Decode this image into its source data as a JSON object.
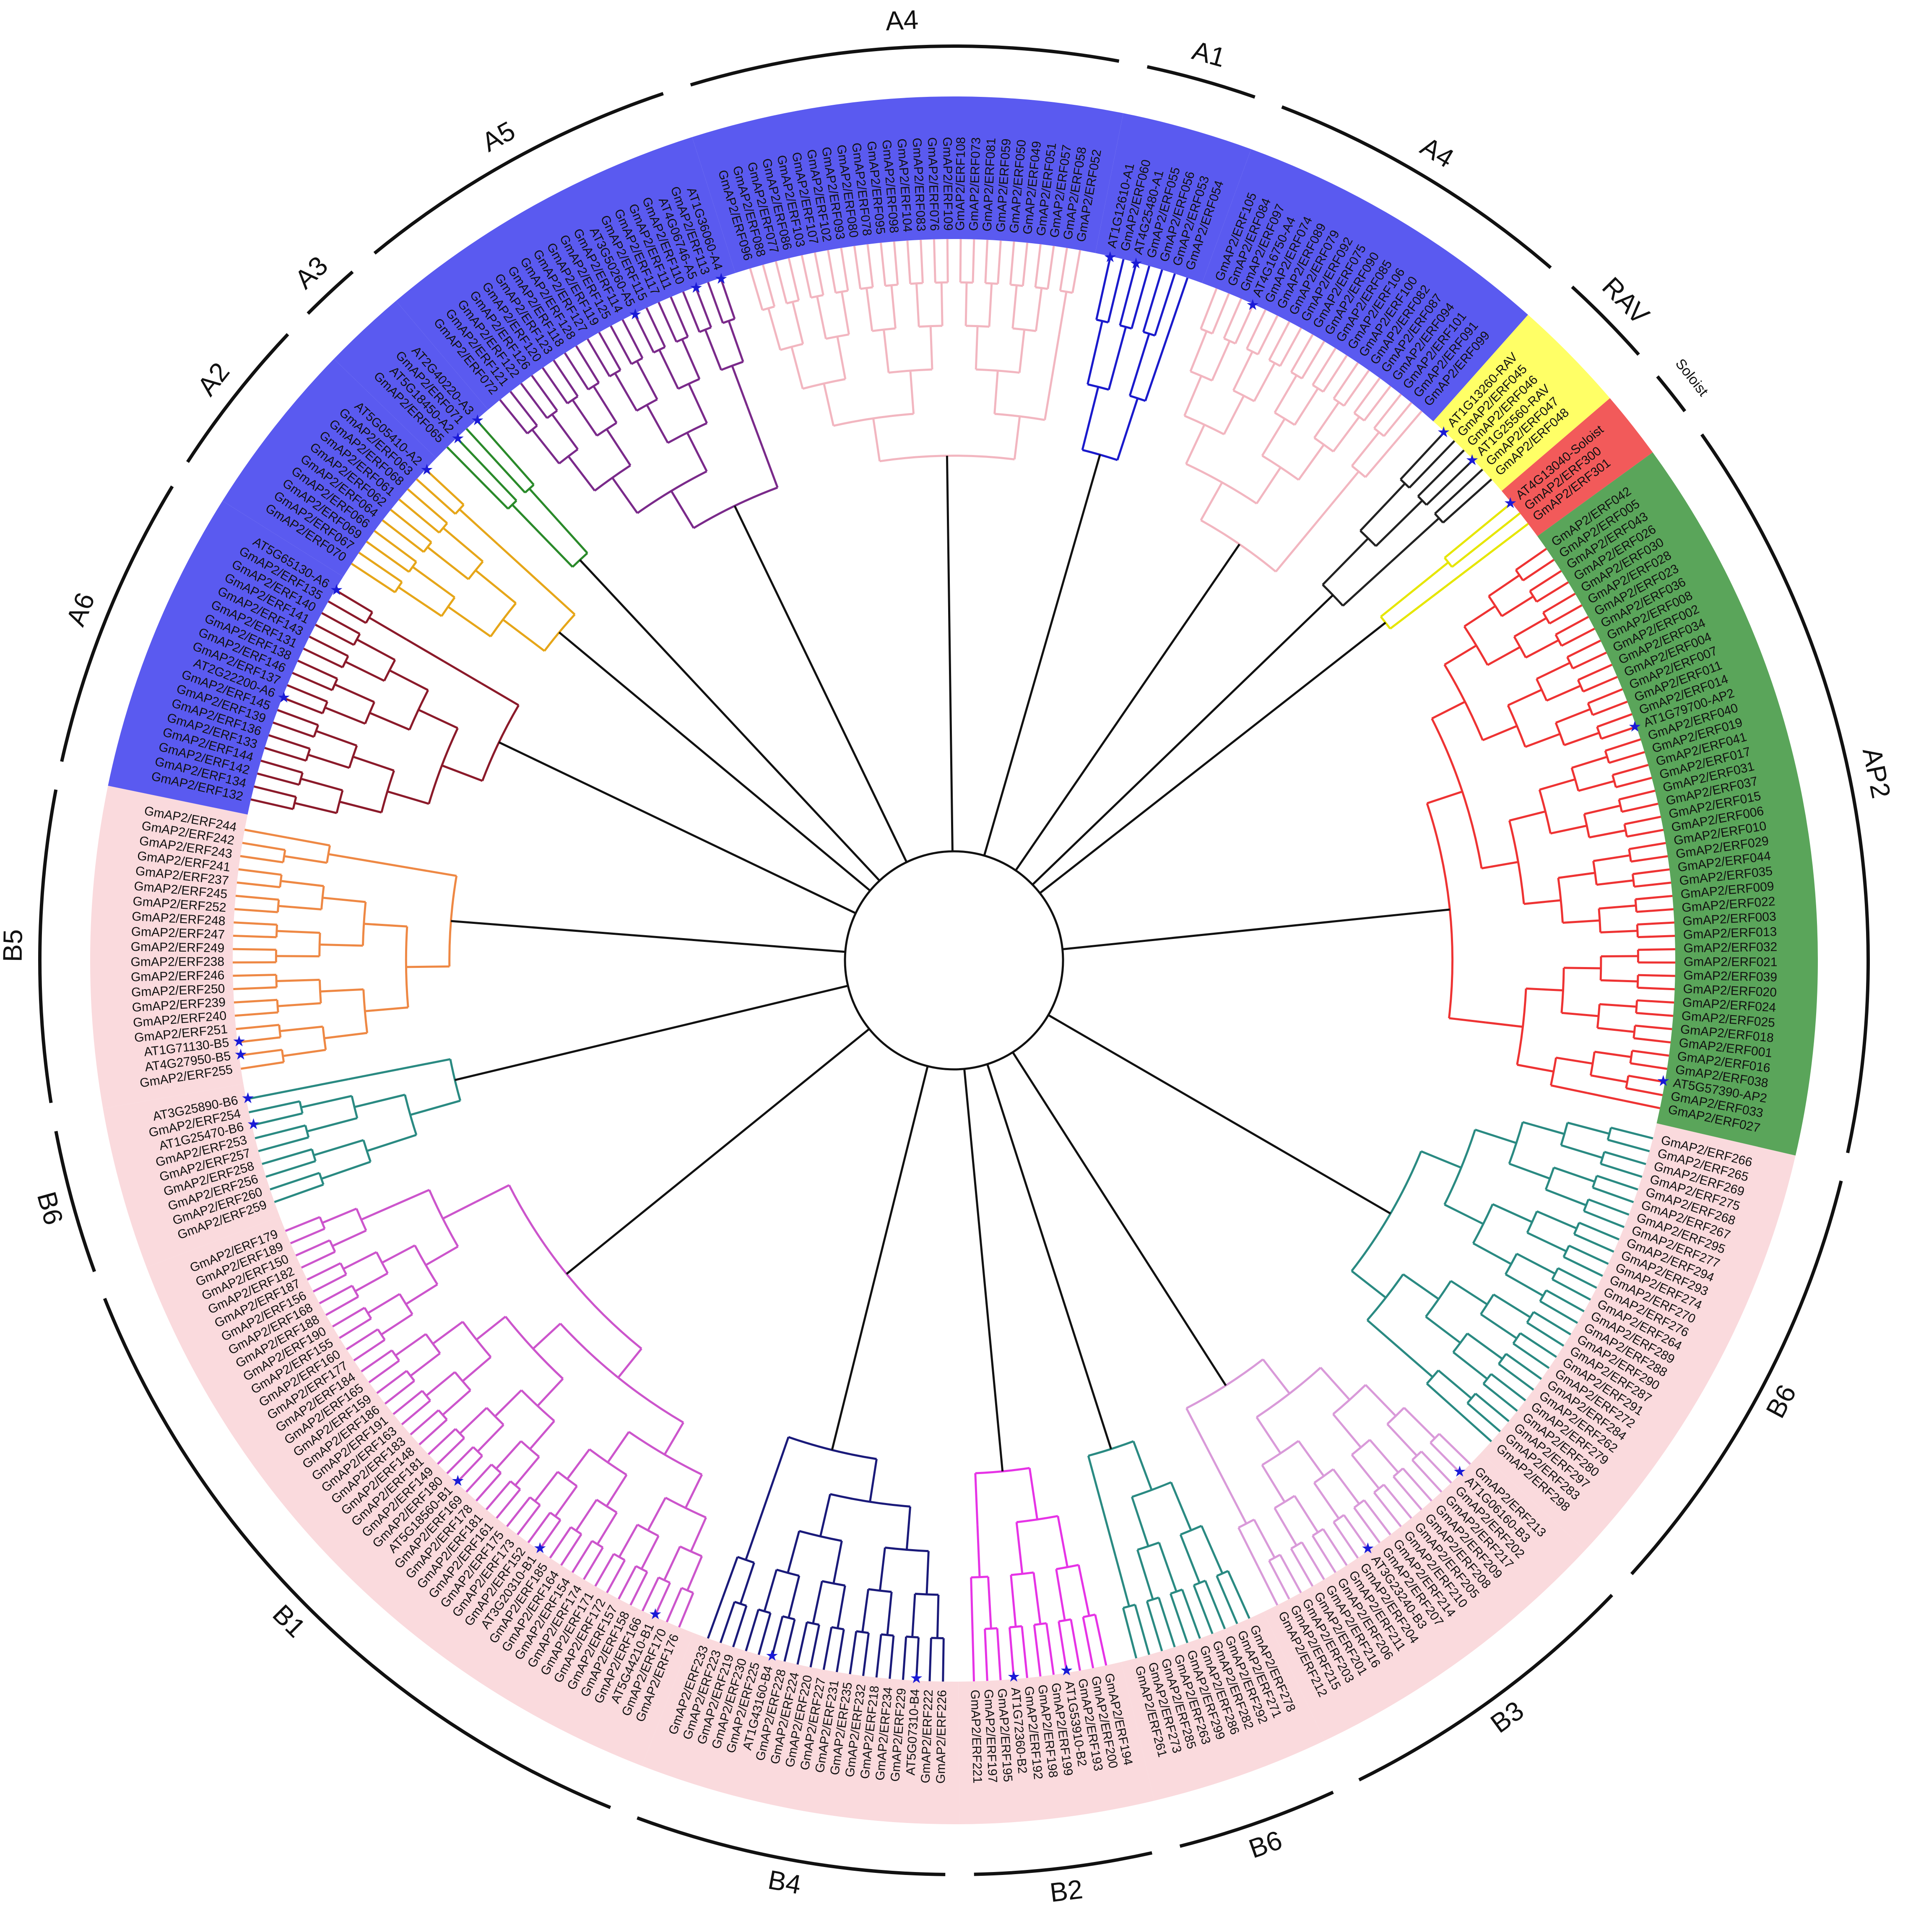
{
  "colors": {
    "bg_blue": "#5a5af0",
    "bg_yellow": "#ffff66",
    "bg_red": "#f25a5a",
    "bg_green": "#5aa55a",
    "bg_pink": "#fadadd",
    "star": "#1a1ad6",
    "ring": "#111111"
  },
  "groups": [
    {
      "label": "A1",
      "leaves": [
        "AT1G12610-A1",
        "GmAP2/ERF060",
        "AT4G25480-A1",
        "GmAP2/ERF055",
        "GmAP2/ERF056",
        "GmAP2/ERF053",
        "GmAP2/ERF054"
      ],
      "color": "#1a1acc"
    },
    {
      "label": "A4",
      "leaves": [
        "GmAP2/ERF105",
        "GmAP2/ERF084",
        "GmAP2/ERF097",
        "AT4G16750-A4",
        "GmAP2/ERF074",
        "GmAP2/ERF089",
        "GmAP2/ERF079",
        "GmAP2/ERF092",
        "GmAP2/ERF075",
        "GmAP2/ERF090",
        "GmAP2/ERF085",
        "GmAP2/ERF106",
        "GmAP2/ERF100",
        "GmAP2/ERF082",
        "GmAP2/ERF087",
        "GmAP2/ERF094",
        "GmAP2/ERF101",
        "GmAP2/ERF091",
        "GmAP2/ERF099"
      ],
      "color": "#f2b6c0"
    },
    {
      "label": "RAV",
      "leaves": [
        "AT1G13260-RAV",
        "GmAP2/ERF045",
        "GmAP2/ERF046",
        "AT1G25560-RAV",
        "GmAP2/ERF047",
        "GmAP2/ERF048"
      ],
      "color": "#222222"
    },
    {
      "label": "Soloist",
      "leaves": [
        "AT4G13040-Soloist",
        "GmAP2/ERF300",
        "GmAP2/ERF301"
      ],
      "color": "#e6e600"
    },
    {
      "label": "AP2",
      "leaves": [
        "GmAP2/ERF042",
        "GmAP2/ERF005",
        "GmAP2/ERF043",
        "GmAP2/ERF026",
        "GmAP2/ERF030",
        "GmAP2/ERF028",
        "GmAP2/ERF023",
        "GmAP2/ERF036",
        "GmAP2/ERF008",
        "GmAP2/ERF002",
        "GmAP2/ERF034",
        "GmAP2/ERF004",
        "GmAP2/ERF007",
        "GmAP2/ERF011",
        "GmAP2/ERF014",
        "AT1G79700-AP2",
        "GmAP2/ERF040",
        "GmAP2/ERF019",
        "GmAP2/ERF041",
        "GmAP2/ERF017",
        "GmAP2/ERF031",
        "GmAP2/ERF037",
        "GmAP2/ERF015",
        "GmAP2/ERF006",
        "GmAP2/ERF010",
        "GmAP2/ERF029",
        "GmAP2/ERF044",
        "GmAP2/ERF035",
        "GmAP2/ERF009",
        "GmAP2/ERF022",
        "GmAP2/ERF003",
        "GmAP2/ERF013",
        "GmAP2/ERF032",
        "GmAP2/ERF021",
        "GmAP2/ERF039",
        "GmAP2/ERF020",
        "GmAP2/ERF024",
        "GmAP2/ERF025",
        "GmAP2/ERF018",
        "GmAP2/ERF001",
        "GmAP2/ERF016",
        "GmAP2/ERF038",
        "AT5G57390-AP2",
        "GmAP2/ERF033",
        "GmAP2/ERF027"
      ],
      "color": "#ee3333"
    },
    {
      "label": "B6",
      "leaves": [
        "GmAP2/ERF266",
        "GmAP2/ERF265",
        "GmAP2/ERF269",
        "GmAP2/ERF275",
        "GmAP2/ERF268",
        "GmAP2/ERF267",
        "GmAP2/ERF295",
        "GmAP2/ERF277",
        "GmAP2/ERF294",
        "GmAP2/ERF293",
        "GmAP2/ERF274",
        "GmAP2/ERF270",
        "GmAP2/ERF276",
        "GmAP2/ERF264",
        "GmAP2/ERF289",
        "GmAP2/ERF288",
        "GmAP2/ERF290",
        "GmAP2/ERF287",
        "GmAP2/ERF291",
        "GmAP2/ERF272",
        "GmAP2/ERF284",
        "GmAP2/ERF262",
        "GmAP2/ERF279",
        "GmAP2/ERF280",
        "GmAP2/ERF297",
        "GmAP2/ERF283",
        "GmAP2/ERF298"
      ],
      "color": "#2a8a82"
    },
    {
      "label": "B3",
      "leaves": [
        "GmAP2/ERF213",
        "AT1G06160-B3",
        "GmAP2/ERF202",
        "GmAP2/ERF217",
        "GmAP2/ERF209",
        "GmAP2/ERF208",
        "GmAP2/ERF205",
        "GmAP2/ERF210",
        "GmAP2/ERF214",
        "GmAP2/ERF207",
        "AT3G23240-B3",
        "GmAP2/ERF204",
        "GmAP2/ERF211",
        "GmAP2/ERF206",
        "GmAP2/ERF216",
        "GmAP2/ERF201",
        "GmAP2/ERF203",
        "GmAP2/ERF215",
        "GmAP2/ERF212"
      ],
      "color": "#d99ad9"
    },
    {
      "label": "B6",
      "leaves": [
        "GmAP2/ERF278",
        "GmAP2/ERF271",
        "GmAP2/ERF292",
        "GmAP2/ERF282",
        "GmAP2/ERF286",
        "GmAP2/ERF299",
        "GmAP2/ERF263",
        "GmAP2/ERF285",
        "GmAP2/ERF273",
        "GmAP2/ERF261"
      ],
      "color": "#2a8a82"
    },
    {
      "label": "B2",
      "leaves": [
        "GmAP2/ERF194",
        "GmAP2/ERF200",
        "GmAP2/ERF193",
        "AT1G53910-B2",
        "GmAP2/ERF199",
        "GmAP2/ERF198",
        "GmAP2/ERF192",
        "AT1G72360-B2",
        "GmAP2/ERF195",
        "GmAP2/ERF197",
        "GmAP2/ERF221"
      ],
      "color": "#e633e6"
    },
    {
      "label": "B4",
      "leaves": [
        "GmAP2/ERF226",
        "GmAP2/ERF222",
        "AT5G07310-B4",
        "GmAP2/ERF229",
        "GmAP2/ERF234",
        "GmAP2/ERF218",
        "GmAP2/ERF232",
        "GmAP2/ERF235",
        "GmAP2/ERF231",
        "GmAP2/ERF227",
        "GmAP2/ERF220",
        "GmAP2/ERF224",
        "GmAP2/ERF228",
        "AT1G43160-B4",
        "GmAP2/ERF225",
        "GmAP2/ERF230",
        "GmAP2/ERF219",
        "GmAP2/ERF223",
        "GmAP2/ERF233"
      ],
      "color": "#1a1a7a"
    },
    {
      "label": "B1",
      "leaves": [
        "GmAP2/ERF176",
        "GmAP2/ERF170",
        "AT5G44210-B1",
        "GmAP2/ERF166",
        "GmAP2/ERF158",
        "GmAP2/ERF157",
        "GmAP2/ERF172",
        "GmAP2/ERF171",
        "GmAP2/ERF174",
        "GmAP2/ERF154",
        "GmAP2/ERF164",
        "GmAP2/ERF185",
        "AT3G20310-B1",
        "GmAP2/ERF152",
        "GmAP2/ERF173",
        "GmAP2/ERF175",
        "GmAP2/ERF161",
        "GmAP2/ERF181",
        "GmAP2/ERF178",
        "GmAP2/ERF169",
        "AT5G18560-B1",
        "GmAP2/ERF180",
        "GmAP2/ERF149",
        "GmAP2/ERF181",
        "GmAP2/ERF148",
        "GmAP2/ERF183",
        "GmAP2/ERF163",
        "GmAP2/ERF191",
        "GmAP2/ERF186",
        "GmAP2/ERF159",
        "GmAP2/ERF165",
        "GmAP2/ERF184",
        "GmAP2/ERF177",
        "GmAP2/ERF160",
        "GmAP2/ERF155",
        "GmAP2/ERF190",
        "GmAP2/ERF188",
        "GmAP2/ERF168",
        "GmAP2/ERF156",
        "GmAP2/ERF187",
        "GmAP2/ERF182",
        "GmAP2/ERF150",
        "GmAP2/ERF189",
        "GmAP2/ERF179"
      ],
      "color": "#cc55cc"
    },
    {
      "label": "B6",
      "leaves": [
        "GmAP2/ERF259",
        "GmAP2/ERF260",
        "GmAP2/ERF256",
        "GmAP2/ERF258",
        "GmAP2/ERF257",
        "GmAP2/ERF253",
        "AT1G25470-B6",
        "GmAP2/ERF254",
        "AT3G25890-B6"
      ],
      "color": "#2a8a82"
    },
    {
      "label": "B5",
      "leaves": [
        "GmAP2/ERF255",
        "AT4G27950-B5",
        "AT1G71130-B5",
        "GmAP2/ERF251",
        "GmAP2/ERF240",
        "GmAP2/ERF239",
        "GmAP2/ERF250",
        "GmAP2/ERF246",
        "GmAP2/ERF238",
        "GmAP2/ERF249",
        "GmAP2/ERF247",
        "GmAP2/ERF248",
        "GmAP2/ERF252",
        "GmAP2/ERF245",
        "GmAP2/ERF237",
        "GmAP2/ERF241",
        "GmAP2/ERF243",
        "GmAP2/ERF242",
        "GmAP2/ERF244"
      ],
      "color": "#ee8844"
    },
    {
      "label": "A6",
      "leaves": [
        "GmAP2/ERF132",
        "GmAP2/ERF134",
        "GmAP2/ERF142",
        "GmAP2/ERF144",
        "GmAP2/ERF133",
        "GmAP2/ERF136",
        "GmAP2/ERF139",
        "GmAP2/ERF145",
        "AT2G22200-A6",
        "GmAP2/ERF137",
        "GmAP2/ERF146",
        "GmAP2/ERF138",
        "GmAP2/ERF131",
        "GmAP2/ERF143",
        "GmAP2/ERF141",
        "GmAP2/ERF140",
        "GmAP2/ERF135",
        "AT5G65130-A6"
      ],
      "color": "#8b1a2a"
    },
    {
      "label": "A2",
      "leaves": [
        "GmAP2/ERF070",
        "GmAP2/ERF067",
        "GmAP2/ERF069",
        "GmAP2/ERF066",
        "GmAP2/ERF064",
        "GmAP2/ERF062",
        "GmAP2/ERF061",
        "GmAP2/ERF068",
        "GmAP2/ERF063",
        "AT5G05410-A2"
      ],
      "color": "#e6a619"
    },
    {
      "label": "A3",
      "leaves": [
        "GmAP2/ERF065",
        "AT5G18450-A2",
        "GmAP2/ERF071",
        "AT2G40220-A3"
      ],
      "color": "#2a8a2a"
    },
    {
      "label": "A5",
      "leaves": [
        "GmAP2/ERF072",
        "GmAP2/ERF121",
        "GmAP2/ERF122",
        "GmAP2/ERF126",
        "GmAP2/ERF120",
        "GmAP2/ERF123",
        "GmAP2/ERF118",
        "GmAP2/ERF128",
        "GmAP2/ERF127",
        "GmAP2/ERF119",
        "GmAP2/ERF125",
        "GmAP2/ERF114",
        "AT3G50260-A5",
        "GmAP2/ERF115",
        "GmAP2/ERF117",
        "GmAP2/ERF111",
        "GmAP2/ERF110",
        "AT4G06746-A5",
        "GmAP2/ERF113",
        "AT1G36060-A4"
      ],
      "color": "#7a2a8a"
    },
    {
      "label": "A4",
      "leaves": [
        "GmAP2/ERF096",
        "GmAP2/ERF088",
        "GmAP2/ERF077",
        "GmAP2/ERF086",
        "GmAP2/ERF103",
        "GmAP2/ERF107",
        "GmAP2/ERF102",
        "GmAP2/ERF093",
        "GmAP2/ERF080",
        "GmAP2/ERF078",
        "GmAP2/ERF095",
        "GmAP2/ERF098",
        "GmAP2/ERF104",
        "GmAP2/ERF083",
        "GmAP2/ERF076",
        "GmAP2/ERF109",
        "GmAP2/ERF108",
        "GmAP2/ERF073",
        "GmAP2/ERF081",
        "GmAP2/ERF059",
        "GmAP2/ERF050",
        "GmAP2/ERF049",
        "GmAP2/ERF051",
        "GmAP2/ERF057",
        "GmAP2/ERF058",
        "GmAP2/ERF052"
      ],
      "color": "#f2b6c0"
    }
  ]
}
